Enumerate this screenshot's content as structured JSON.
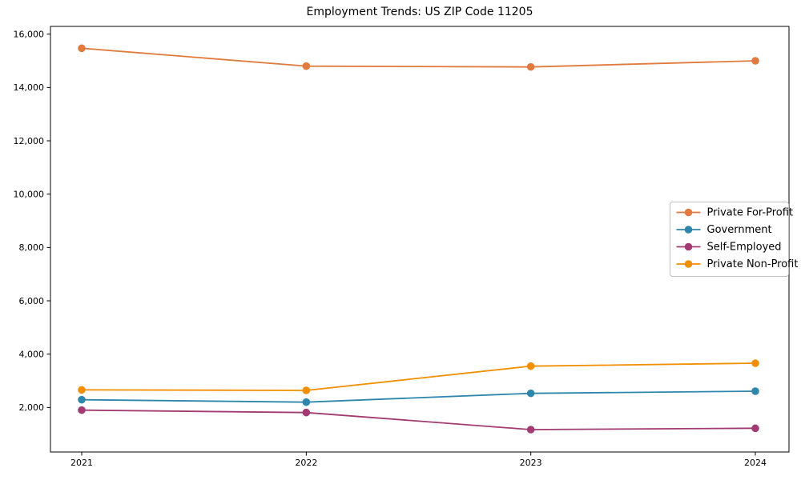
{
  "page": {
    "background": "#ffffff"
  },
  "chart_data": {
    "type": "line",
    "title": "Employment Trends: US ZIP Code 11205",
    "xlabel": "",
    "ylabel": "",
    "categories": [
      "2021",
      "2022",
      "2023",
      "2024"
    ],
    "x_tick_labels": [
      "2021",
      "2022",
      "2023",
      "2024"
    ],
    "y_ticks": [
      2000,
      4000,
      6000,
      8000,
      10000,
      12000,
      14000,
      16000
    ],
    "y_tick_labels": [
      "2,000",
      "4,000",
      "6,000",
      "8,000",
      "10,000",
      "12,000",
      "14,000",
      "16,000"
    ],
    "ylim": [
      330,
      16290
    ],
    "grid": false,
    "marker": "circle",
    "frame": true,
    "legend": {
      "position": "center-right",
      "border_color": "#c0c0c0",
      "entries": [
        "Private For-Profit",
        "Government",
        "Self-Employed",
        "Private Non-Profit"
      ]
    },
    "series": [
      {
        "name": "Private For-Profit",
        "color": "#E07A3D",
        "values": [
          15470,
          14800,
          14770,
          15000
        ]
      },
      {
        "name": "Government",
        "color": "#2E86AB",
        "values": [
          2290,
          2200,
          2530,
          2610
        ]
      },
      {
        "name": "Self-Employed",
        "color": "#A23B72",
        "values": [
          1900,
          1810,
          1170,
          1220
        ]
      },
      {
        "name": "Private Non-Profit",
        "color": "#F18F01",
        "values": [
          2660,
          2640,
          3550,
          3660
        ]
      }
    ]
  }
}
